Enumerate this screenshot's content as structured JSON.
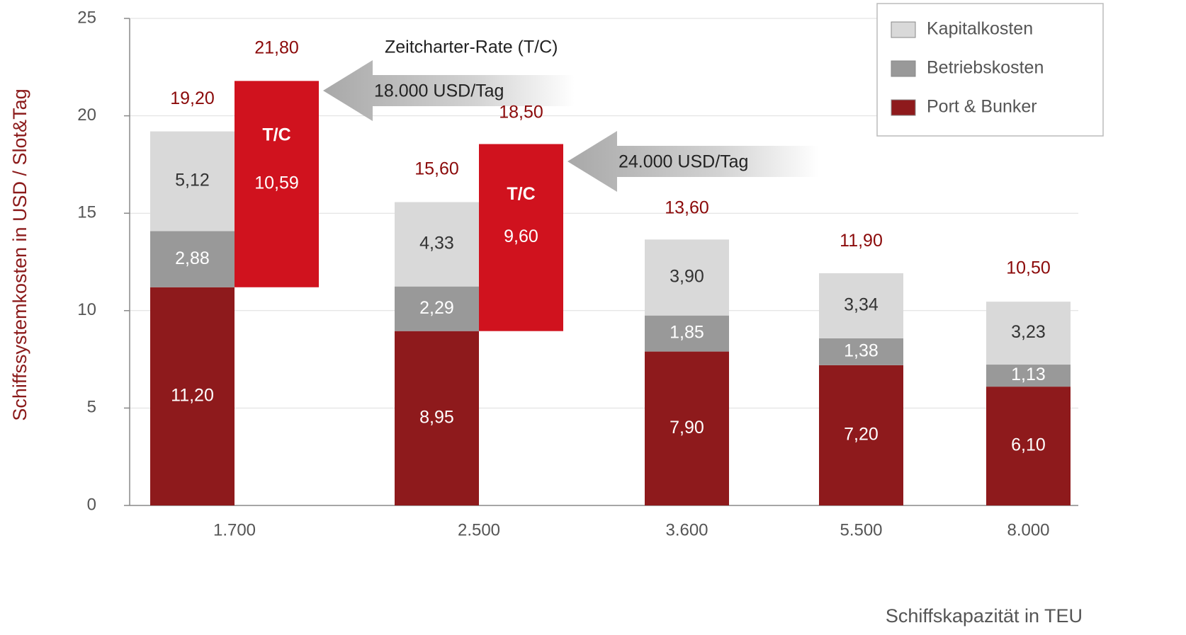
{
  "chart_data": {
    "type": "bar",
    "stacked": true,
    "y_label": "Schiffssystemkosten in USD / Slot&Tag",
    "x_label": "Schiffskapazität in TEU",
    "annotation": "Zeitcharter-Rate (T/C)",
    "categories": [
      "1.700",
      "2.500",
      "3.600",
      "5.500",
      "8.000"
    ],
    "series": [
      {
        "name": "Port & Bunker",
        "color": "#8e1a1c",
        "label_color": "#ffffff",
        "values": [
          11.2,
          8.95,
          7.9,
          7.2,
          6.1
        ],
        "value_labels": [
          "11,20",
          "8,95",
          "7,90",
          "7,20",
          "6,10"
        ]
      },
      {
        "name": "Betriebskosten",
        "color": "#999999",
        "label_color": "#ffffff",
        "values": [
          2.88,
          2.29,
          1.85,
          1.38,
          1.13
        ],
        "value_labels": [
          "2,88",
          "2,29",
          "1,85",
          "1,38",
          "1,13"
        ]
      },
      {
        "name": "Kapitalkosten",
        "color": "#d9d9d9",
        "label_color": "#333333",
        "values": [
          5.12,
          4.33,
          3.9,
          3.34,
          3.23
        ],
        "value_labels": [
          "5,12",
          "4,33",
          "3,90",
          "3,34",
          "3,23"
        ]
      }
    ],
    "totals": {
      "color": "#8b0a0a",
      "values": [
        19.2,
        15.6,
        13.6,
        11.9,
        10.5
      ],
      "value_labels": [
        "19,20",
        "15,60",
        "13,60",
        "11,90",
        "10,50"
      ]
    },
    "tc": {
      "label": "T/C",
      "color": "#d0121e",
      "values": [
        10.59,
        9.6
      ],
      "value_labels": [
        "10,59",
        "9,60"
      ],
      "totals": [
        21.8,
        18.5
      ],
      "total_labels": [
        "21,80",
        "18,50"
      ],
      "rates": [
        "18.000 USD/Tag",
        "24.000 USD/Tag"
      ]
    },
    "ylim": [
      0,
      25
    ],
    "yticks": [
      0,
      5,
      10,
      15,
      20,
      25
    ],
    "grid": true,
    "legend": "upper right"
  }
}
